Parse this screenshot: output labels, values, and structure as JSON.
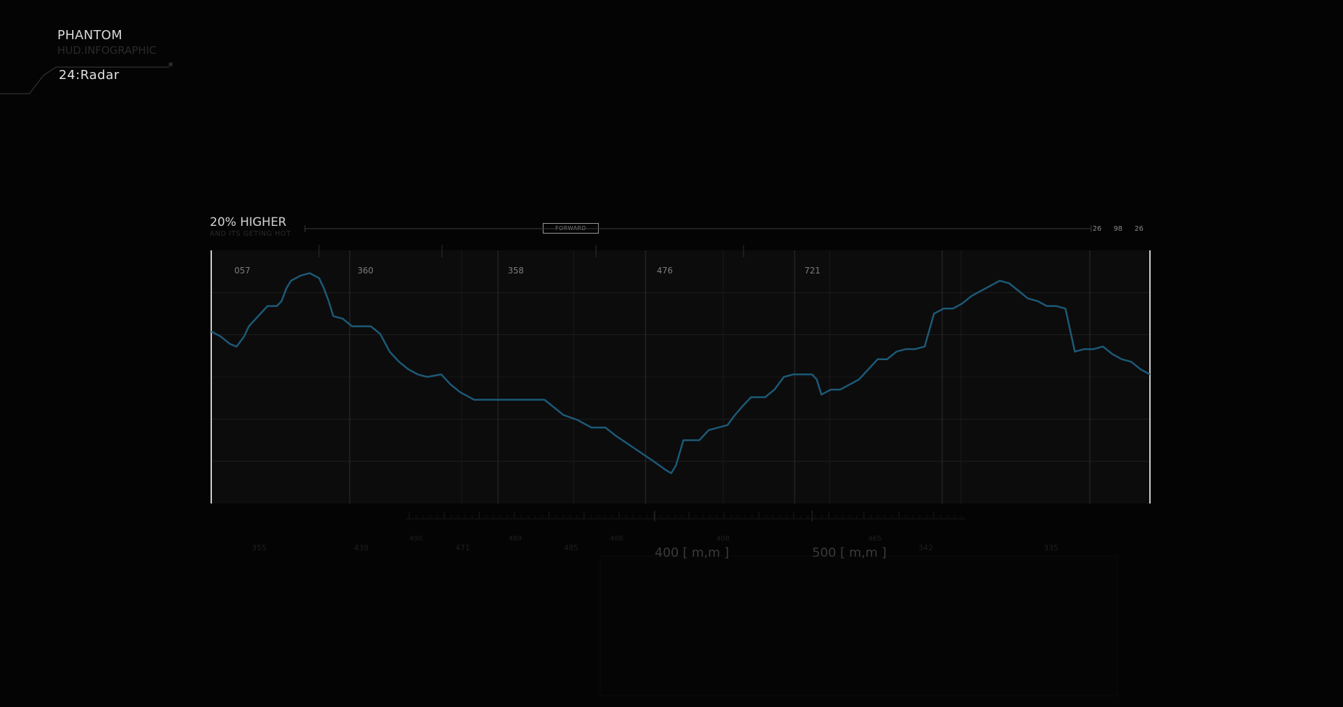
{
  "header": {
    "brand": "PHANTOM",
    "subtitle": "HUD.INFOGRAPHIC",
    "episode": "24:Radar"
  },
  "panel": {
    "headline": "20% HIGHER",
    "subline": "AND ITS GETING HOT",
    "forward_label": "FORWARD",
    "readouts": [
      "26",
      "98",
      "26"
    ]
  },
  "colors": {
    "background": "#040404",
    "panel": "#0c0c0c",
    "line": "#1c5a78",
    "grid": "#1f1f1f",
    "frame": "#d0d0d0"
  },
  "chart_data": {
    "type": "line",
    "title": "",
    "xlabel": "",
    "ylabel": "",
    "xlim": [
      0,
      100
    ],
    "ylim": [
      0,
      100
    ],
    "grid": true,
    "section_labels": [
      "057",
      "360",
      "358",
      "476",
      "721"
    ],
    "series": [
      {
        "values": [
          [
            0,
            68
          ],
          [
            1,
            66
          ],
          [
            2,
            63
          ],
          [
            2.7,
            62
          ],
          [
            3.5,
            66
          ],
          [
            4,
            70
          ],
          [
            5,
            74
          ],
          [
            6,
            78
          ],
          [
            7,
            78
          ],
          [
            7.5,
            80
          ],
          [
            8,
            85
          ],
          [
            8.5,
            88
          ],
          [
            9.5,
            90
          ],
          [
            10.5,
            91
          ],
          [
            11.5,
            89
          ],
          [
            12,
            85
          ],
          [
            12.5,
            80
          ],
          [
            13,
            74
          ],
          [
            14,
            73
          ],
          [
            15,
            70
          ],
          [
            16,
            70
          ],
          [
            17,
            70
          ],
          [
            18,
            67
          ],
          [
            19,
            60
          ],
          [
            20,
            56
          ],
          [
            21,
            53
          ],
          [
            22,
            51
          ],
          [
            23,
            50
          ],
          [
            24.5,
            51
          ],
          [
            25.5,
            47
          ],
          [
            26.5,
            44
          ],
          [
            28,
            41
          ],
          [
            30,
            41
          ],
          [
            33,
            41
          ],
          [
            35.5,
            41
          ],
          [
            36.5,
            38
          ],
          [
            37.5,
            35
          ],
          [
            39,
            33
          ],
          [
            40.5,
            30
          ],
          [
            42,
            30
          ],
          [
            43,
            27
          ],
          [
            45,
            22
          ],
          [
            47,
            17
          ],
          [
            48.5,
            13
          ],
          [
            49,
            12
          ],
          [
            49.5,
            15
          ],
          [
            50.3,
            25
          ],
          [
            51,
            25
          ],
          [
            52,
            25
          ],
          [
            53,
            29
          ],
          [
            54,
            30
          ],
          [
            55,
            31
          ],
          [
            55.8,
            35
          ],
          [
            56.5,
            38
          ],
          [
            57.5,
            42
          ],
          [
            59,
            42
          ],
          [
            60,
            45
          ],
          [
            61,
            50
          ],
          [
            62,
            51
          ],
          [
            63,
            51
          ],
          [
            64,
            51
          ],
          [
            64.5,
            49
          ],
          [
            65,
            43
          ],
          [
            66,
            45
          ],
          [
            67,
            45
          ],
          [
            68,
            47
          ],
          [
            69,
            49
          ],
          [
            70,
            53
          ],
          [
            71,
            57
          ],
          [
            72,
            57
          ],
          [
            73,
            60
          ],
          [
            74,
            61
          ],
          [
            75,
            61
          ],
          [
            76,
            62
          ],
          [
            77,
            75
          ],
          [
            78,
            77
          ],
          [
            79,
            77
          ],
          [
            80,
            79
          ],
          [
            81,
            82
          ],
          [
            82,
            84
          ],
          [
            83,
            86
          ],
          [
            84,
            88
          ],
          [
            85,
            87
          ],
          [
            86,
            84
          ],
          [
            87,
            81
          ],
          [
            88,
            80
          ],
          [
            89,
            78
          ],
          [
            90,
            78
          ],
          [
            91,
            77
          ],
          [
            92,
            60
          ],
          [
            93,
            61
          ],
          [
            94,
            61
          ],
          [
            95,
            62
          ],
          [
            96,
            59
          ],
          [
            97,
            57
          ],
          [
            98,
            56
          ],
          [
            99,
            53
          ],
          [
            100,
            51
          ]
        ]
      }
    ],
    "scale_labels": [
      "400 [ m,m ]",
      "500 [ m,m ]"
    ],
    "scale_numbers": [
      "355",
      "438",
      "471",
      "485",
      "342",
      "335"
    ],
    "scale_numbers_upper": [
      "490",
      "489",
      "486",
      "408",
      "465"
    ]
  }
}
